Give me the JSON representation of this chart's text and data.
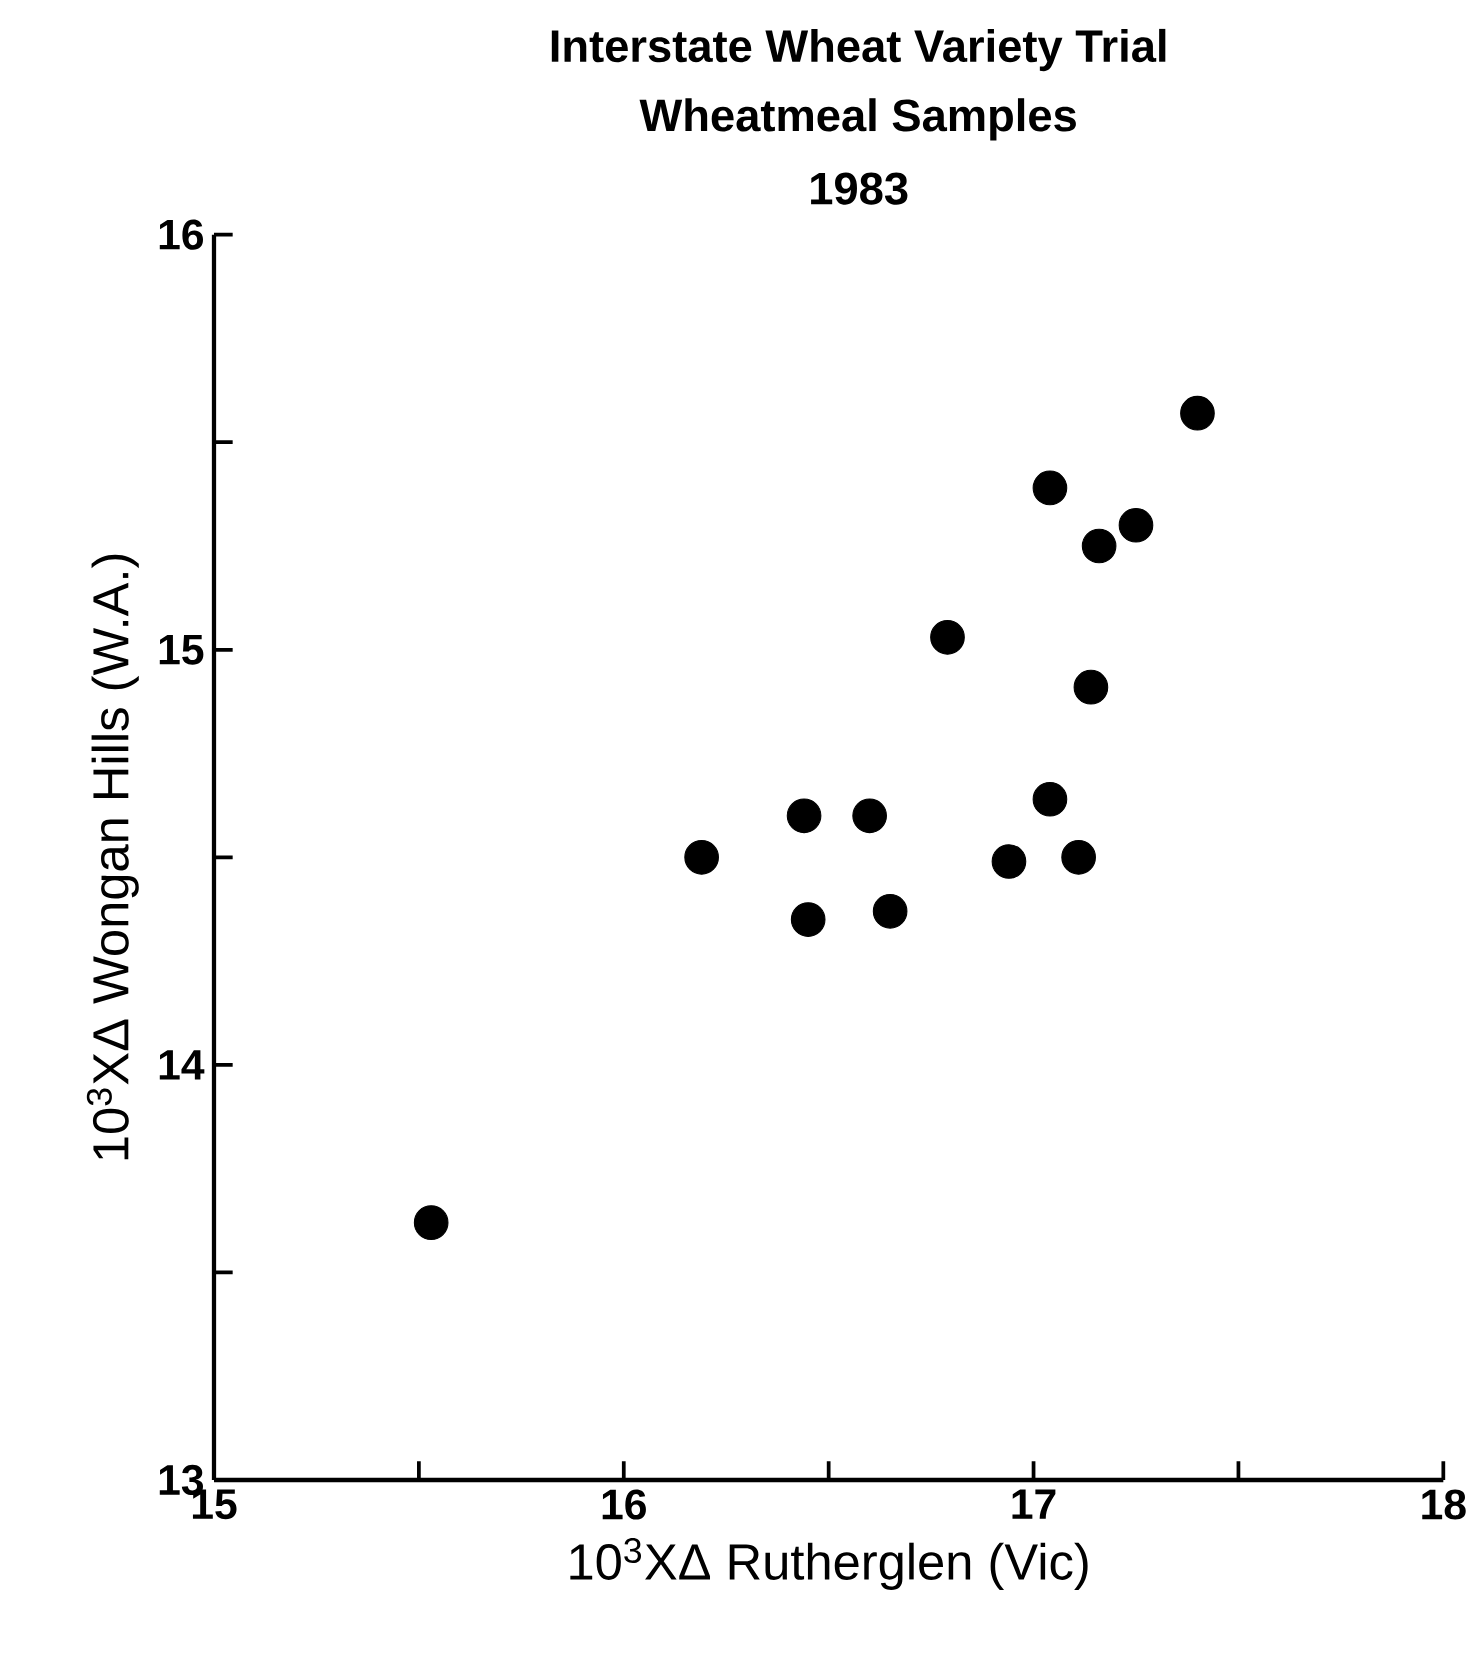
{
  "chart_data": {
    "type": "scatter",
    "title": "Interstate Wheat Variety Trial",
    "subtitle": "Wheatmeal Samples",
    "annotations": [
      "1983"
    ],
    "xlabel": "10$^{3}$XΔ Rutherglen (Vic)",
    "ylabel": "10$^{3}$XΔ Wongan Hills (W.A.)",
    "x": [
      17.4,
      17.04,
      17.25,
      17.16,
      16.79,
      17.14,
      17.04,
      16.44,
      16.6,
      16.19,
      16.94,
      17.11,
      16.45,
      16.65,
      15.53
    ],
    "series": [
      {
        "color": "#000000",
        "values": [
          15.57,
          15.39,
          15.3,
          15.25,
          15.03,
          14.91,
          14.64,
          14.6,
          14.6,
          14.5,
          14.49,
          14.5,
          14.35,
          14.37,
          13.62
        ]
      }
    ],
    "xlim": [
      15,
      18
    ],
    "ylim": [
      13,
      16
    ],
    "xticks": [
      15,
      {
        "value": 15.5,
        "label": null
      },
      16,
      {
        "value": 16.5,
        "label": null
      },
      17,
      {
        "value": 17.5,
        "label": null
      },
      18
    ],
    "yticks": [
      13,
      {
        "value": 13.5,
        "label": null
      },
      14,
      {
        "value": 14.5,
        "label": null
      },
      15,
      {
        "value": 15.5,
        "label": null
      },
      16
    ],
    "grid": false,
    "marker": "circle"
  }
}
